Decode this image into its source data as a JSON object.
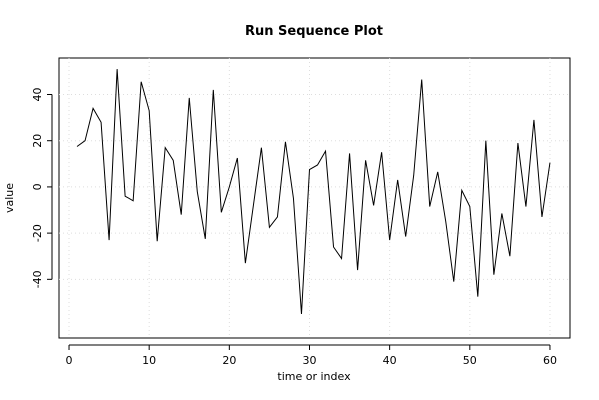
{
  "chart_data": {
    "type": "line",
    "title": "Run Sequence Plot",
    "x_label": "time or index",
    "y_label": "value",
    "x": [
      1,
      2,
      3,
      4,
      5,
      6,
      7,
      8,
      9,
      10,
      11,
      12,
      13,
      14,
      15,
      16,
      17,
      18,
      19,
      20,
      21,
      22,
      23,
      24,
      25,
      26,
      27,
      28,
      29,
      30,
      31,
      32,
      33,
      34,
      35,
      36,
      37,
      38,
      39,
      40,
      41,
      42,
      43,
      44,
      45,
      46,
      47,
      48,
      49,
      50,
      51,
      52,
      53,
      54,
      55,
      56,
      57,
      58,
      59,
      60
    ],
    "series": [
      {
        "name": "value",
        "color": "#000000",
        "values": [
          17.5,
          20,
          34,
          28,
          -23,
          51,
          -4,
          -6,
          45.5,
          33,
          -23.5,
          17,
          11.5,
          -12,
          38.5,
          -2,
          -22.5,
          42,
          -11,
          0,
          12.5,
          -33,
          -8,
          17,
          -17.5,
          -13,
          19.5,
          -5,
          -55,
          7.5,
          9.5,
          15.5,
          -26,
          -31,
          14.5,
          -36,
          11.5,
          -8,
          15,
          -23,
          3,
          -21.5,
          5,
          46.5,
          -8.5,
          6.5,
          -15,
          -41,
          -1.5,
          -8.5,
          -47.5,
          20,
          -38,
          -11.5,
          -30,
          19,
          -8.5,
          29,
          -13,
          10.5
        ]
      }
    ],
    "xlim": [
      -1.25,
      62.5
    ],
    "ylim": [
      -65.4,
      55.8
    ],
    "xticks": [
      0,
      10,
      20,
      30,
      40,
      50,
      60
    ],
    "yticks": [
      -40,
      -20,
      0,
      20,
      40
    ],
    "grid": true
  }
}
